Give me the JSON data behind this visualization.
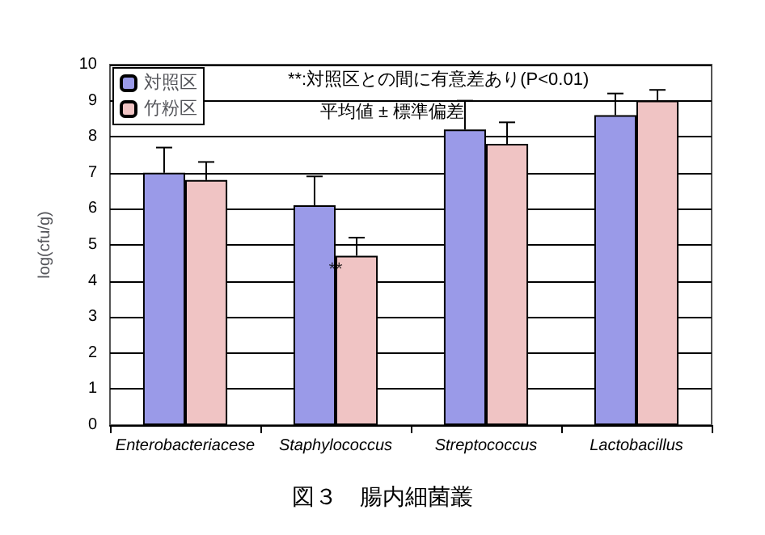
{
  "chart_data": {
    "type": "bar",
    "title": "図３　腸内細菌叢",
    "ylabel": "log(cfu/g)",
    "categories": [
      "Enterobacteriacese",
      "Staphylococcus",
      "Streptococcus",
      "Lactobacillus"
    ],
    "series": [
      {
        "name": "対照区",
        "color": "#9a9ae8",
        "values": [
          7.0,
          6.1,
          8.2,
          8.6
        ],
        "errors": [
          [
            7.0,
            7.7
          ],
          [
            6.1,
            6.9
          ],
          [
            8.2,
            9.0
          ],
          [
            8.6,
            9.2
          ]
        ]
      },
      {
        "name": "竹粉区",
        "color": "#f0c4c4",
        "values": [
          6.8,
          4.7,
          7.8,
          9.0
        ],
        "errors": [
          [
            6.8,
            7.3
          ],
          [
            4.7,
            5.2
          ],
          [
            7.8,
            8.4
          ],
          [
            9.0,
            9.3
          ]
        ]
      }
    ],
    "ylim": [
      0,
      10
    ],
    "yticks": [
      0,
      1,
      2,
      3,
      4,
      5,
      6,
      7,
      8,
      9,
      10
    ],
    "grid": "y",
    "legend": "top left",
    "annotations": [
      "**:対照区との間に有意差あり(P<0.01)",
      "平均値 ± 標準偏差",
      {
        "text": "**",
        "x": "Staphylococcus",
        "y": 4.3
      }
    ]
  }
}
